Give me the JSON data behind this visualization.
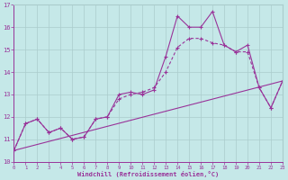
{
  "xlabel": "Windchill (Refroidissement éolien,°C)",
  "xlim": [
    0,
    23
  ],
  "ylim": [
    10,
    17
  ],
  "yticks": [
    10,
    11,
    12,
    13,
    14,
    15,
    16,
    17
  ],
  "xticks": [
    0,
    1,
    2,
    3,
    4,
    5,
    6,
    7,
    8,
    9,
    10,
    11,
    12,
    13,
    14,
    15,
    16,
    17,
    18,
    19,
    20,
    21,
    22,
    23
  ],
  "background_color": "#c5e8e8",
  "line_color": "#993399",
  "grid_color": "#aacccc",
  "line1_x": [
    0,
    1,
    2,
    3,
    4,
    5,
    6,
    7,
    8,
    9,
    10,
    11,
    12,
    13,
    14,
    15,
    16,
    17,
    18,
    19,
    20,
    21,
    22,
    23
  ],
  "line1_y": [
    10.5,
    11.7,
    11.9,
    11.3,
    11.5,
    11.0,
    11.1,
    11.9,
    12.0,
    13.0,
    13.1,
    13.0,
    13.2,
    14.7,
    16.5,
    16.0,
    16.0,
    16.7,
    15.2,
    14.9,
    15.2,
    13.3,
    12.4,
    13.6
  ],
  "line2_x": [
    0,
    1,
    2,
    3,
    4,
    5,
    6,
    7,
    8,
    9,
    10,
    11,
    12,
    13,
    14,
    15,
    16,
    17,
    18,
    19,
    20,
    21,
    22,
    23
  ],
  "line2_y": [
    10.5,
    11.7,
    11.9,
    11.3,
    11.5,
    11.0,
    11.1,
    11.9,
    12.0,
    12.8,
    13.0,
    13.1,
    13.3,
    14.0,
    15.1,
    15.5,
    15.5,
    15.3,
    15.2,
    14.9,
    14.9,
    13.3,
    12.4,
    13.6
  ],
  "line3_x": [
    0,
    23
  ],
  "line3_y": [
    10.5,
    13.6
  ]
}
